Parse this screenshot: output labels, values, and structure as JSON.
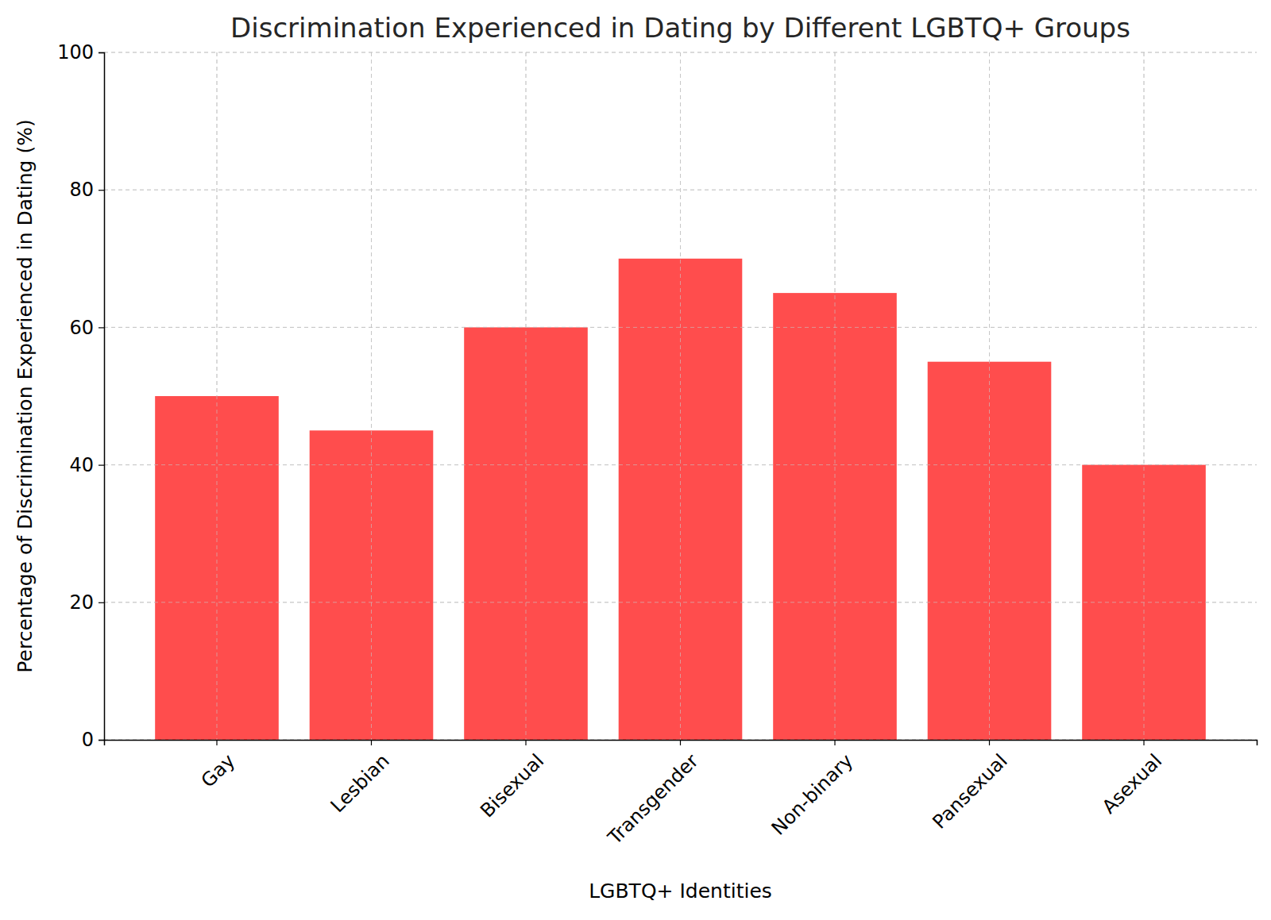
{
  "chart_data": {
    "type": "bar",
    "title": "Discrimination Experienced in Dating by Different LGBTQ+ Groups",
    "x_label": "LGBTQ+ Identities",
    "y_label": "Percentage of Discrimination Experienced in Dating (%)",
    "categories": [
      "Gay",
      "Lesbian",
      "Bisexual",
      "Transgender",
      "Non-binary",
      "Pansexual",
      "Asexual"
    ],
    "values": [
      50,
      45,
      60,
      70,
      65,
      55,
      40
    ],
    "color": "#ff4d4d",
    "ylim": [
      0,
      100
    ],
    "yticks": [
      0,
      20,
      40,
      60,
      80,
      100
    ],
    "grid": true
  }
}
